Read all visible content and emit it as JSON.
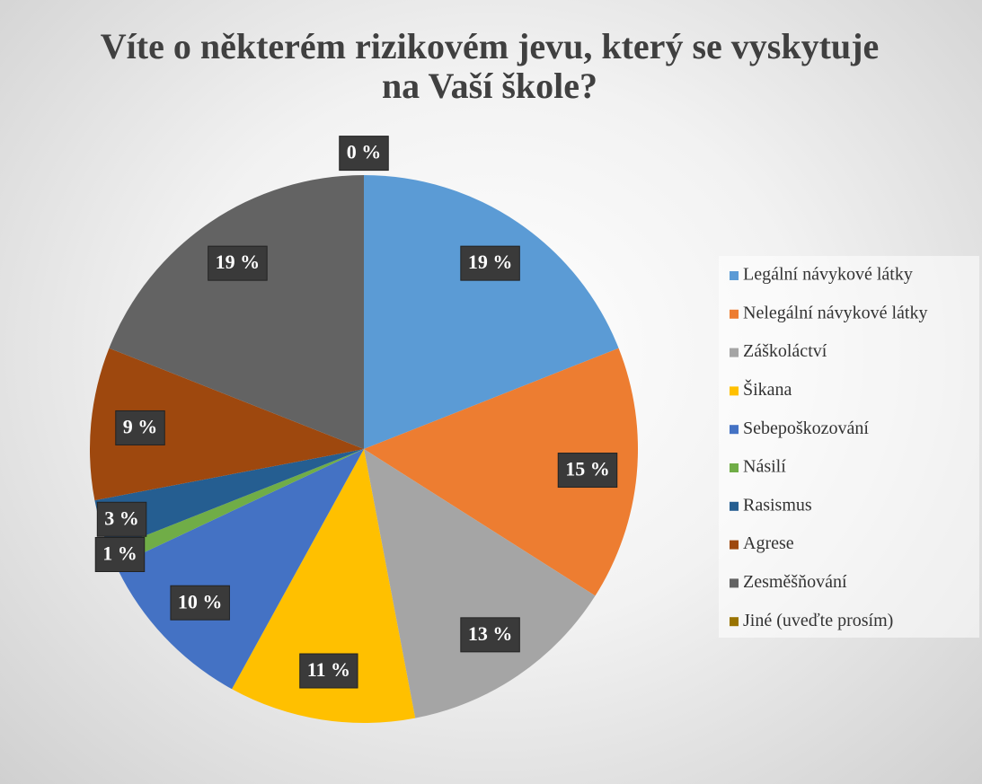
{
  "chart_data": {
    "type": "pie",
    "title": "Víte o některém rizikovém jevu, který se vyskytuje na Vaší škole?",
    "categories": [
      "Legální návykové látky",
      "Nelegální návykové látky",
      "Záškoláctví",
      "Šikana",
      "Sebepoškozování",
      "Násilí",
      "Rasismus",
      "Agrese",
      "Zesměšňování",
      "Jiné (uveďte prosím)"
    ],
    "values": [
      19,
      15,
      13,
      11,
      10,
      1,
      3,
      9,
      19,
      0
    ],
    "value_labels": [
      "19 %",
      "15 %",
      "13 %",
      "11 %",
      "10 %",
      "1 %",
      "3 %",
      "9 %",
      "19 %",
      "0 %"
    ],
    "colors": [
      "#5b9bd5",
      "#ed7d31",
      "#a5a5a5",
      "#ffc000",
      "#4472c4",
      "#70ad47",
      "#255e91",
      "#9e480e",
      "#636363",
      "#997300"
    ],
    "legend": "right"
  }
}
